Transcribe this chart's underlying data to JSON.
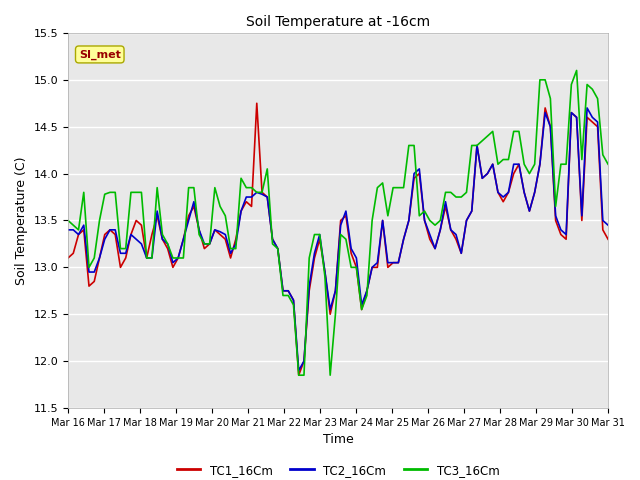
{
  "title": "Soil Temperature at -16cm",
  "xlabel": "Time",
  "ylabel": "Soil Temperature (C)",
  "ylim": [
    11.5,
    15.5
  ],
  "fig_bg_color": "#ffffff",
  "plot_bg_color": "#e8e8e8",
  "annotation_text": "SI_met",
  "annotation_bg": "#ffff99",
  "annotation_border": "#aaa800",
  "annotation_text_color": "#990000",
  "legend_labels": [
    "TC1_16Cm",
    "TC2_16Cm",
    "TC3_16Cm"
  ],
  "line_colors": [
    "#cc0000",
    "#0000cc",
    "#00bb00"
  ],
  "tick_labels": [
    "Mar 16",
    "Mar 17",
    "Mar 18",
    "Mar 19",
    "Mar 20",
    "Mar 21",
    "Mar 22",
    "Mar 23",
    "Mar 24",
    "Mar 25",
    "Mar 26",
    "Mar 27",
    "Mar 28",
    "Mar 29",
    "Mar 30",
    "Mar 31"
  ],
  "tc1": [
    13.1,
    13.15,
    13.35,
    13.4,
    12.8,
    12.85,
    13.1,
    13.35,
    13.4,
    13.35,
    13.0,
    13.1,
    13.35,
    13.5,
    13.45,
    13.1,
    13.35,
    13.55,
    13.3,
    13.2,
    13.0,
    13.1,
    13.3,
    13.55,
    13.65,
    13.4,
    13.2,
    13.25,
    13.4,
    13.35,
    13.3,
    13.1,
    13.3,
    13.6,
    13.7,
    13.65,
    14.75,
    13.8,
    13.75,
    13.3,
    13.2,
    12.75,
    12.75,
    12.65,
    11.85,
    12.0,
    12.75,
    13.1,
    13.3,
    12.95,
    12.5,
    12.75,
    13.5,
    13.55,
    13.15,
    13.0,
    12.55,
    12.75,
    13.0,
    13.0,
    13.5,
    13.0,
    13.05,
    13.05,
    13.3,
    13.5,
    13.95,
    14.0,
    13.5,
    13.3,
    13.2,
    13.4,
    13.65,
    13.4,
    13.3,
    13.15,
    13.5,
    13.6,
    14.3,
    13.95,
    14.0,
    14.1,
    13.8,
    13.7,
    13.8,
    14.0,
    14.1,
    13.8,
    13.6,
    13.8,
    14.1,
    14.7,
    14.5,
    13.5,
    13.35,
    13.3,
    14.65,
    14.6,
    13.5,
    14.6,
    14.55,
    14.5,
    13.4,
    13.3
  ],
  "tc2": [
    13.4,
    13.4,
    13.35,
    13.45,
    12.95,
    12.95,
    13.1,
    13.3,
    13.4,
    13.4,
    13.15,
    13.15,
    13.35,
    13.3,
    13.25,
    13.1,
    13.1,
    13.6,
    13.3,
    13.25,
    13.05,
    13.1,
    13.3,
    13.5,
    13.7,
    13.4,
    13.25,
    13.25,
    13.4,
    13.38,
    13.35,
    13.15,
    13.25,
    13.6,
    13.75,
    13.75,
    13.8,
    13.78,
    13.75,
    13.3,
    13.2,
    12.75,
    12.75,
    12.65,
    11.9,
    12.0,
    12.8,
    13.15,
    13.35,
    12.95,
    12.55,
    12.75,
    13.45,
    13.6,
    13.2,
    13.1,
    12.6,
    12.75,
    13.0,
    13.05,
    13.5,
    13.05,
    13.05,
    13.05,
    13.3,
    13.5,
    14.0,
    14.05,
    13.5,
    13.35,
    13.2,
    13.4,
    13.7,
    13.4,
    13.35,
    13.15,
    13.5,
    13.6,
    14.3,
    13.95,
    14.0,
    14.1,
    13.8,
    13.75,
    13.8,
    14.1,
    14.1,
    13.8,
    13.6,
    13.8,
    14.1,
    14.65,
    14.5,
    13.55,
    13.4,
    13.35,
    14.65,
    14.6,
    13.55,
    14.7,
    14.6,
    14.55,
    13.5,
    13.45
  ],
  "tc3": [
    13.5,
    13.45,
    13.4,
    13.8,
    13.0,
    13.1,
    13.5,
    13.78,
    13.8,
    13.8,
    13.2,
    13.2,
    13.8,
    13.8,
    13.8,
    13.1,
    13.1,
    13.85,
    13.35,
    13.25,
    13.1,
    13.1,
    13.1,
    13.85,
    13.85,
    13.35,
    13.25,
    13.25,
    13.85,
    13.65,
    13.55,
    13.2,
    13.2,
    13.95,
    13.85,
    13.85,
    13.8,
    13.8,
    14.05,
    13.25,
    13.2,
    12.7,
    12.7,
    12.6,
    11.85,
    11.85,
    13.1,
    13.35,
    13.35,
    12.9,
    11.85,
    12.5,
    13.35,
    13.3,
    13.0,
    13.0,
    12.55,
    12.7,
    13.5,
    13.85,
    13.9,
    13.55,
    13.85,
    13.85,
    13.85,
    14.3,
    14.3,
    13.55,
    13.6,
    13.5,
    13.45,
    13.5,
    13.8,
    13.8,
    13.75,
    13.75,
    13.8,
    14.3,
    14.3,
    14.35,
    14.4,
    14.45,
    14.1,
    14.15,
    14.15,
    14.45,
    14.45,
    14.1,
    14.0,
    14.1,
    15.0,
    15.0,
    14.8,
    13.65,
    14.1,
    14.1,
    14.95,
    15.1,
    14.15,
    14.95,
    14.9,
    14.8,
    14.2,
    14.1
  ]
}
